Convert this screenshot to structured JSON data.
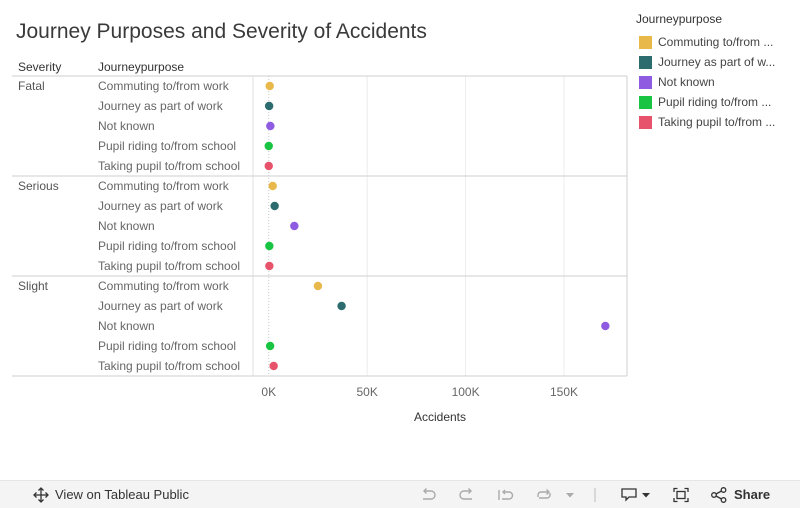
{
  "chart_data": {
    "type": "scatter",
    "title": "Journey Purposes and Severity of Accidents",
    "row_header": "Severity",
    "sub_header": "Journeypurpose",
    "xlabel": "Accidents",
    "xlim": [
      -8000,
      182000
    ],
    "xticks": [
      0,
      50000,
      100000,
      150000
    ],
    "xtick_labels": [
      "0K",
      "50K",
      "100K",
      "150K"
    ],
    "grid": true,
    "legend_position": "right",
    "legend_title": "Journeypurpose",
    "purposes": [
      {
        "label": "Commuting to/from work",
        "legend_label": "Commuting to/from ...",
        "color": "#e8b84a"
      },
      {
        "label": "Journey as part of work",
        "legend_label": "Journey as part of w...",
        "color": "#2c6b6e"
      },
      {
        "label": "Not known",
        "legend_label": "Not known",
        "color": "#8f5be0"
      },
      {
        "label": "Pupil riding to/from school",
        "legend_label": "Pupil riding to/from ...",
        "color": "#18c442"
      },
      {
        "label": "Taking pupil to/from school",
        "legend_label": "Taking pupil to/from ...",
        "color": "#e8536c"
      }
    ],
    "groups": [
      {
        "severity": "Fatal",
        "values": [
          500,
          200,
          800,
          0,
          0
        ]
      },
      {
        "severity": "Serious",
        "values": [
          2000,
          3000,
          13000,
          300,
          300
        ]
      },
      {
        "severity": "Slight",
        "values": [
          25000,
          37000,
          171000,
          700,
          2500
        ]
      }
    ]
  },
  "toolbar": {
    "view_label": "View on Tableau Public",
    "share_label": "Share"
  }
}
